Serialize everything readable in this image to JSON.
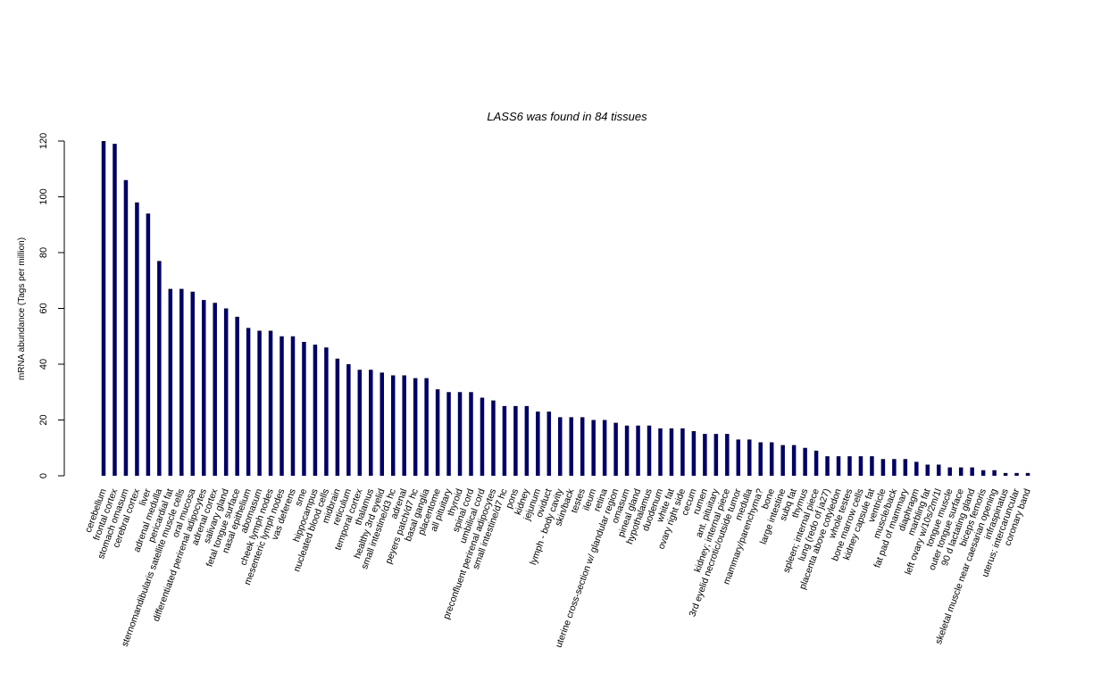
{
  "chart_data": {
    "type": "bar",
    "title": "LASS6  was found in  84  tissues",
    "xlabel": "",
    "ylabel": "mRNA abundance (Tags per million)",
    "ylim": [
      0,
      120
    ],
    "yticks": [
      0,
      20,
      40,
      60,
      80,
      100,
      120
    ],
    "grid": false,
    "bar_color": "#000066",
    "categories": [
      "cerebellum",
      "frontal cortex",
      "stomach omasum",
      "cerebral cortex",
      "liver",
      "adrenal medulla",
      "pericardial fat",
      "sternomandibularis satellite muscle cells",
      "oral mucosa",
      "differentiated perirenal adipocytes",
      "adrenal cortex",
      "salivary gland",
      "fetal tongue surface",
      "nasal epithelium",
      "abomasum",
      "cheek lymph nodes",
      "mesenteric lymph nodes",
      "vas deferens",
      "sme",
      "hippocampus",
      "nucleated blood cells",
      "midbrain",
      "reticulum",
      "temporal cortex",
      "thalamus",
      "healthy 3rd eyelid",
      "small intestine/d3 hc",
      "adrenal",
      "peyers patch/d7 hc",
      "basal ganglia",
      "placentome",
      "all pituitary",
      "thyroid",
      "spinal cord",
      "umbilical cord",
      "preconfluent perirenal adipocytes",
      "small intestine/d7 hc",
      "pons",
      "kidney",
      "jejunum",
      "oviduct",
      "lymph - body cavity",
      "skin/back",
      "testes",
      "ileum",
      "retina",
      "uterine cross-section w/ glandular region",
      "omasum",
      "pineal gland",
      "hypothalamus",
      "duodenum",
      "white fat",
      "ovary right side",
      "cecum",
      "rumen",
      "ant. pituitary",
      "kidney; internal piece",
      "3rd eyelid necrotic/outside tumor",
      "medulla",
      "mammary/parenchyma?",
      "bone",
      "large intestine",
      "subq fat",
      "thymus",
      "spleen; internal piece",
      "lung (redo of ja27)",
      "placenta above cotyledon",
      "whole testes",
      "bone marrow cells",
      "kidney capsule fat",
      "ventricle",
      "muscle/back",
      "fat pad of mammary",
      "diaphragm",
      "marbling fat",
      "left ovary w/10s/2m/1l",
      "tongue muscle",
      "outer tongue surface",
      "90 d lactating gland",
      "biceps femoris",
      "skeletal muscle near caesarian opening",
      "infraspinatus",
      "uterus; intercaruncular",
      "coronary band"
    ],
    "values": [
      120,
      119,
      106,
      98,
      94,
      77,
      67,
      67,
      66,
      63,
      62,
      60,
      57,
      53,
      52,
      52,
      50,
      50,
      48,
      47,
      46,
      42,
      40,
      38,
      38,
      37,
      36,
      36,
      35,
      35,
      31,
      30,
      30,
      30,
      28,
      27,
      25,
      25,
      25,
      23,
      23,
      21,
      21,
      21,
      20,
      20,
      19,
      18,
      18,
      18,
      17,
      17,
      17,
      16,
      15,
      15,
      15,
      13,
      13,
      12,
      12,
      11,
      11,
      10,
      9,
      7,
      7,
      7,
      7,
      7,
      6,
      6,
      6,
      5,
      4,
      4,
      3,
      3,
      3,
      2,
      2,
      1,
      1,
      1
    ]
  }
}
